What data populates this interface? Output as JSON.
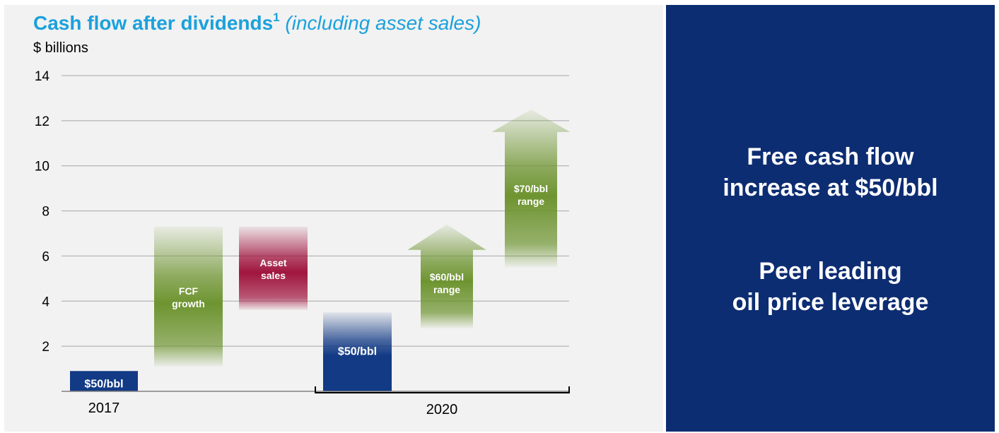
{
  "title": {
    "main": "Cash flow after dividends",
    "footnote": "1",
    "qualifier": "(including asset sales)"
  },
  "unit_label": "$ billions",
  "colors": {
    "title": "#1ba1dc",
    "base_bar": "#123a85",
    "green": "#6e9430",
    "asset_sales": "#a0153e",
    "panel": "#0d2d72",
    "grid": "#a6a6a6"
  },
  "chart_data": {
    "type": "bar",
    "subtype": "waterfall",
    "ylim": [
      0,
      14
    ],
    "yticks": [
      2,
      4,
      6,
      8,
      10,
      12,
      14
    ],
    "grid": true,
    "x_groups": [
      "2017",
      "2020"
    ],
    "bars": [
      {
        "label": "$50/bbl",
        "group": "2017",
        "bottom": 0,
        "top": 0.9,
        "color": "base_bar",
        "shape": "bar"
      },
      {
        "label": "FCF growth",
        "group": "2017",
        "bottom": 1.1,
        "top": 7.3,
        "color": "green",
        "shape": "bar"
      },
      {
        "label": "Asset sales",
        "group": "2017",
        "bottom": 3.6,
        "top": 7.3,
        "color": "asset_sales",
        "shape": "bar"
      },
      {
        "label": "$50/bbl",
        "group": "2020",
        "bottom": 0,
        "top": 3.5,
        "color": "base_bar",
        "shape": "bar"
      },
      {
        "label": "$60/bbl range",
        "group": "2020",
        "bottom": 2.8,
        "top": 7.4,
        "color": "green",
        "shape": "arrow"
      },
      {
        "label": "$70/bbl range",
        "group": "2020",
        "bottom": 5.5,
        "top": 12.5,
        "color": "green",
        "shape": "arrow"
      }
    ]
  },
  "panel": {
    "line1": "Free cash flow",
    "line2": "increase at $50/bbl",
    "line3": "Peer leading",
    "line4": "oil price leverage"
  }
}
